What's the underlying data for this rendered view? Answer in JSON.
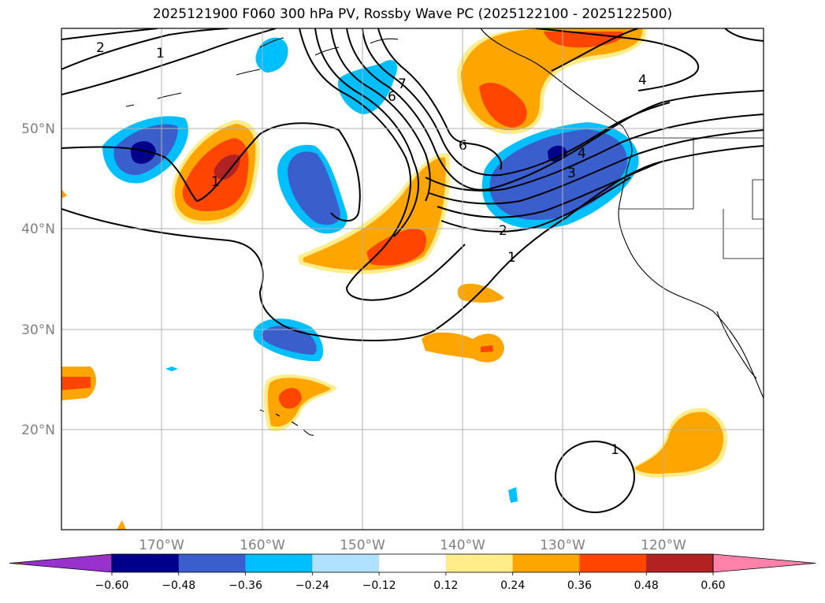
{
  "title": "2025121900 F060 300 hPa PV, Rossby Wave PC (2025122100 - 2025122500)",
  "lat_ticks": [
    "50°N",
    "40°N",
    "30°N",
    "20°N"
  ],
  "lon_ticks": [
    "170°W",
    "160°W",
    "150°W",
    "140°W",
    "130°W",
    "120°W"
  ],
  "colorbar": {
    "levels": [
      "-0.60",
      "-0.48",
      "-0.36",
      "-0.24",
      "-0.12",
      "0.12",
      "0.24",
      "0.36",
      "0.48",
      "0.60"
    ],
    "colors": [
      "#9932cc",
      "#00008b",
      "#3a5fcd",
      "#00bfff",
      "#b0e2ff",
      "#ffffff",
      "#ffec8b",
      "#ffa500",
      "#ff4500",
      "#b22222",
      "#ff82ab"
    ]
  },
  "contour_labels": [
    "2",
    "1",
    "7",
    "6",
    "6",
    "4",
    "4",
    "3",
    "2",
    "1",
    "1"
  ]
}
